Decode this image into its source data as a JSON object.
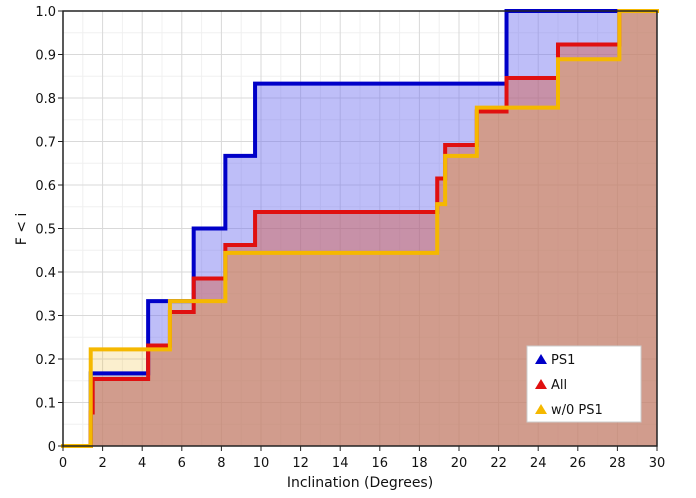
{
  "chart_data": {
    "type": "line",
    "step": true,
    "title": "",
    "xlabel": "Inclination (Degrees)",
    "ylabel": "F < i",
    "xlim": [
      0,
      30
    ],
    "ylim": [
      0,
      1
    ],
    "x_ticks": [
      0,
      2,
      4,
      6,
      8,
      10,
      12,
      14,
      16,
      18,
      20,
      22,
      24,
      26,
      28,
      30
    ],
    "y_ticks": [
      0,
      0.1,
      0.2,
      0.3,
      0.4,
      0.5,
      0.6,
      0.7,
      0.8,
      0.9,
      1.0
    ],
    "x_tick_labels": [
      "0",
      "2",
      "4",
      "6",
      "8",
      "10",
      "12",
      "14",
      "16",
      "18",
      "20",
      "22",
      "24",
      "26",
      "28",
      "30"
    ],
    "y_tick_labels": [
      "0",
      "0.1",
      "0.2",
      "0.3",
      "0.4",
      "0.5",
      "0.6",
      "0.7",
      "0.8",
      "0.9",
      "1.0"
    ],
    "grid": true,
    "legend_position": "bottom-right",
    "series": [
      {
        "name": "PS1",
        "color": "#0000c8",
        "fill": "rgba(110,110,240,0.45)",
        "x": [
          0,
          1.4,
          4.3,
          6.6,
          8.2,
          9.7,
          22.4,
          30
        ],
        "y": [
          0,
          0.167,
          0.333,
          0.5,
          0.667,
          0.833,
          1.0,
          1.0
        ]
      },
      {
        "name": "All",
        "color": "#e01010",
        "fill": "rgba(210,90,70,0.45)",
        "x": [
          0,
          1.4,
          1.5,
          4.3,
          5.4,
          6.6,
          8.2,
          9.7,
          18.9,
          19.3,
          19.6,
          20.9,
          22.4,
          25.0,
          28.1,
          30
        ],
        "y": [
          0,
          0.077,
          0.154,
          0.231,
          0.308,
          0.385,
          0.462,
          0.538,
          0.615,
          0.692,
          0.692,
          0.769,
          0.846,
          0.923,
          1.0,
          1.0
        ]
      },
      {
        "name": "w/0 PS1",
        "color": "#f5b800",
        "fill": "rgba(240,190,60,0.25)",
        "x": [
          0,
          1.4,
          4.3,
          5.4,
          8.2,
          18.9,
          19.3,
          20.9,
          25.0,
          28.1,
          30
        ],
        "y": [
          0,
          0.222,
          0.222,
          0.333,
          0.444,
          0.556,
          0.667,
          0.778,
          0.889,
          1.0,
          1.0
        ]
      }
    ]
  }
}
